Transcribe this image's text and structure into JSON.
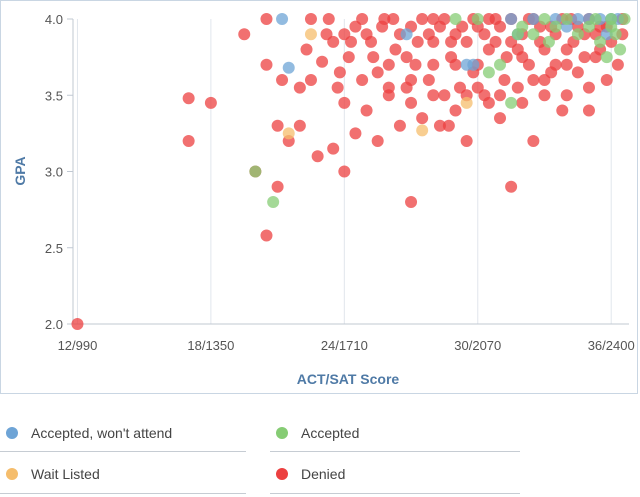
{
  "chart_data": {
    "type": "scatter",
    "xlabel": "ACT/SAT Score",
    "ylabel": "GPA",
    "x_ticks": [
      "12/990",
      "18/1350",
      "24/1710",
      "30/2070",
      "36/2400"
    ],
    "x_tick_values": [
      12,
      18,
      24,
      30,
      36
    ],
    "xlim": [
      11.8,
      36.8
    ],
    "y_ticks": [
      "2.0",
      "2.5",
      "3.0",
      "3.5",
      "4.0"
    ],
    "y_tick_values": [
      2.0,
      2.5,
      3.0,
      3.5,
      4.0
    ],
    "ylim": [
      2.0,
      4.0
    ],
    "grid": "vertical",
    "legend_placement": "bottom",
    "series": [
      {
        "name": "Accepted, won't attend",
        "color": "#6ea4d6",
        "points": [
          [
            21.2,
            4.0
          ],
          [
            21.5,
            3.68
          ],
          [
            26.8,
            3.9
          ],
          [
            29.5,
            3.7
          ],
          [
            29.8,
            3.7
          ],
          [
            31.5,
            4.0
          ],
          [
            31.8,
            3.9
          ],
          [
            32.5,
            4.0
          ],
          [
            33.5,
            4.0
          ],
          [
            34.0,
            3.95
          ],
          [
            34.5,
            4.0
          ],
          [
            35.0,
            4.0
          ],
          [
            35.5,
            4.0
          ],
          [
            35.8,
            3.9
          ],
          [
            36.0,
            4.0
          ],
          [
            36.3,
            4.0
          ]
        ]
      },
      {
        "name": "Accepted",
        "color": "#86cc74",
        "points": [
          [
            20.0,
            3.0
          ],
          [
            20.8,
            2.8
          ],
          [
            29.0,
            4.0
          ],
          [
            30.0,
            4.0
          ],
          [
            30.5,
            3.65
          ],
          [
            31.0,
            3.7
          ],
          [
            31.5,
            3.45
          ],
          [
            31.8,
            3.9
          ],
          [
            32.0,
            3.95
          ],
          [
            32.5,
            3.9
          ],
          [
            33.0,
            4.0
          ],
          [
            33.2,
            3.85
          ],
          [
            33.5,
            3.95
          ],
          [
            34.0,
            4.0
          ],
          [
            34.5,
            3.9
          ],
          [
            35.0,
            3.95
          ],
          [
            35.3,
            4.0
          ],
          [
            35.5,
            3.85
          ],
          [
            35.8,
            3.75
          ],
          [
            36.0,
            4.0
          ],
          [
            36.2,
            3.9
          ],
          [
            36.4,
            3.8
          ],
          [
            36.6,
            4.0
          ],
          [
            36.0,
            3.95
          ]
        ]
      },
      {
        "name": "Wait Listed",
        "color": "#f5bd6c",
        "points": [
          [
            21.5,
            3.25
          ],
          [
            22.5,
            3.9
          ],
          [
            27.5,
            3.27
          ],
          [
            29.5,
            3.45
          ]
        ]
      },
      {
        "name": "Denied",
        "color": "#ec4040",
        "points": [
          [
            12.0,
            2.0
          ],
          [
            17.0,
            3.2
          ],
          [
            17.0,
            3.48
          ],
          [
            18.0,
            3.45
          ],
          [
            19.5,
            3.9
          ],
          [
            20.0,
            3.0
          ],
          [
            20.5,
            2.58
          ],
          [
            20.5,
            3.7
          ],
          [
            20.5,
            4.0
          ],
          [
            21.0,
            2.9
          ],
          [
            21.0,
            3.3
          ],
          [
            21.2,
            3.6
          ],
          [
            21.5,
            3.2
          ],
          [
            22.0,
            3.3
          ],
          [
            22.0,
            3.55
          ],
          [
            22.3,
            3.8
          ],
          [
            22.5,
            4.0
          ],
          [
            22.8,
            3.1
          ],
          [
            22.5,
            3.6
          ],
          [
            23.0,
            3.72
          ],
          [
            23.2,
            3.9
          ],
          [
            23.5,
            3.15
          ],
          [
            23.3,
            4.0
          ],
          [
            23.7,
            3.55
          ],
          [
            24.0,
            3.0
          ],
          [
            24.0,
            3.45
          ],
          [
            24.2,
            3.75
          ],
          [
            24.5,
            3.25
          ],
          [
            24.5,
            3.95
          ],
          [
            24.8,
            3.6
          ],
          [
            25.0,
            3.4
          ],
          [
            25.2,
            3.85
          ],
          [
            25.5,
            3.2
          ],
          [
            25.5,
            3.65
          ],
          [
            25.8,
            4.0
          ],
          [
            26.0,
            3.5
          ],
          [
            26.3,
            3.8
          ],
          [
            26.5,
            3.3
          ],
          [
            26.8,
            3.55
          ],
          [
            27.0,
            2.8
          ],
          [
            27.0,
            3.95
          ],
          [
            27.2,
            3.7
          ],
          [
            27.5,
            3.35
          ],
          [
            27.8,
            3.6
          ],
          [
            28.0,
            3.85
          ],
          [
            28.0,
            4.0
          ],
          [
            28.3,
            3.3
          ],
          [
            28.5,
            3.5
          ],
          [
            28.8,
            3.75
          ],
          [
            29.0,
            3.9
          ],
          [
            29.2,
            3.55
          ],
          [
            29.5,
            3.2
          ],
          [
            29.8,
            3.65
          ],
          [
            30.0,
            3.95
          ],
          [
            30.3,
            3.5
          ],
          [
            30.5,
            3.8
          ],
          [
            30.8,
            4.0
          ],
          [
            31.0,
            3.35
          ],
          [
            31.2,
            3.6
          ],
          [
            31.5,
            2.9
          ],
          [
            31.5,
            3.85
          ],
          [
            31.8,
            3.55
          ],
          [
            32.0,
            3.75
          ],
          [
            32.3,
            4.0
          ],
          [
            32.5,
            3.2
          ],
          [
            32.5,
            3.6
          ],
          [
            32.8,
            3.85
          ],
          [
            33.0,
            3.5
          ],
          [
            33.3,
            3.95
          ],
          [
            33.5,
            3.7
          ],
          [
            33.8,
            3.4
          ],
          [
            34.0,
            3.8
          ],
          [
            34.2,
            4.0
          ],
          [
            34.5,
            3.65
          ],
          [
            34.8,
            3.9
          ],
          [
            35.0,
            3.55
          ],
          [
            35.3,
            3.75
          ],
          [
            35.5,
            3.95
          ],
          [
            35.8,
            3.6
          ],
          [
            36.0,
            3.85
          ],
          [
            36.3,
            3.7
          ],
          [
            36.5,
            4.0
          ],
          [
            36.5,
            3.9
          ],
          [
            24.0,
            3.9
          ],
          [
            24.3,
            3.85
          ],
          [
            24.8,
            4.0
          ],
          [
            25.0,
            3.9
          ],
          [
            25.3,
            3.75
          ],
          [
            25.7,
            3.95
          ],
          [
            26.0,
            3.7
          ],
          [
            26.2,
            4.0
          ],
          [
            26.5,
            3.9
          ],
          [
            26.8,
            3.75
          ],
          [
            27.0,
            3.6
          ],
          [
            27.3,
            3.85
          ],
          [
            27.5,
            4.0
          ],
          [
            27.8,
            3.9
          ],
          [
            28.0,
            3.7
          ],
          [
            28.3,
            3.95
          ],
          [
            28.5,
            4.0
          ],
          [
            28.8,
            3.85
          ],
          [
            29.0,
            3.7
          ],
          [
            29.3,
            3.95
          ],
          [
            29.5,
            3.85
          ],
          [
            29.8,
            4.0
          ],
          [
            30.0,
            3.7
          ],
          [
            30.3,
            3.9
          ],
          [
            30.5,
            4.0
          ],
          [
            30.8,
            3.85
          ],
          [
            31.0,
            3.95
          ],
          [
            31.3,
            3.75
          ],
          [
            31.5,
            4.0
          ],
          [
            31.8,
            3.8
          ],
          [
            32.0,
            3.9
          ],
          [
            32.3,
            3.7
          ],
          [
            32.5,
            4.0
          ],
          [
            32.8,
            3.95
          ],
          [
            33.0,
            3.8
          ],
          [
            33.3,
            3.65
          ],
          [
            33.5,
            3.9
          ],
          [
            33.8,
            4.0
          ],
          [
            34.0,
            3.7
          ],
          [
            34.3,
            3.85
          ],
          [
            34.5,
            3.95
          ],
          [
            34.8,
            3.75
          ],
          [
            35.0,
            4.0
          ],
          [
            35.3,
            3.9
          ],
          [
            35.5,
            3.8
          ],
          [
            35.8,
            3.95
          ],
          [
            23.5,
            3.85
          ],
          [
            23.8,
            3.65
          ],
          [
            26.0,
            3.55
          ],
          [
            27.0,
            3.45
          ],
          [
            28.0,
            3.5
          ],
          [
            29.0,
            3.4
          ],
          [
            30.0,
            3.55
          ],
          [
            31.0,
            3.5
          ],
          [
            32.0,
            3.45
          ],
          [
            33.0,
            3.6
          ],
          [
            34.0,
            3.5
          ],
          [
            35.0,
            3.4
          ],
          [
            29.5,
            3.5
          ],
          [
            30.5,
            3.45
          ],
          [
            28.7,
            3.3
          ]
        ]
      }
    ]
  },
  "legend": [
    {
      "label": "Accepted, won't attend",
      "color": "#6ea4d6"
    },
    {
      "label": "Accepted",
      "color": "#86cc74"
    },
    {
      "label": "Wait Listed",
      "color": "#f5bd6c"
    },
    {
      "label": "Denied",
      "color": "#ec4040"
    }
  ]
}
